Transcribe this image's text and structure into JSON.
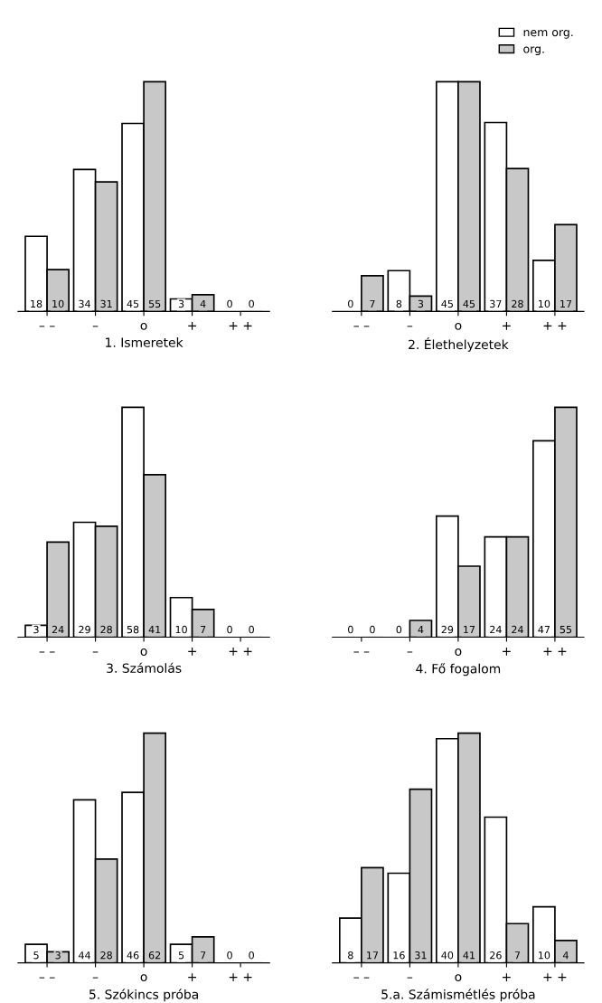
{
  "chart_data": [
    {
      "type": "bar",
      "title": "1. Ismeretek",
      "categories": [
        "– –",
        "–",
        "o",
        "+",
        "+ +"
      ],
      "data_labels": true,
      "legend": false,
      "series": [
        {
          "color": "#ffffff",
          "values": [
            18,
            34,
            45,
            3,
            0
          ]
        },
        {
          "color": "#c8c8c8",
          "values": [
            10,
            31,
            55,
            4,
            0
          ]
        }
      ]
    },
    {
      "type": "bar",
      "title": "2. Élethelyzetek",
      "categories": [
        "– –",
        "–",
        "o",
        "+",
        "+ +"
      ],
      "data_labels": true,
      "legend": "top right",
      "series": [
        {
          "name": "nem org.",
          "color": "#ffffff",
          "values": [
            0,
            8,
            45,
            37,
            10
          ]
        },
        {
          "name": "org.",
          "color": "#c8c8c8",
          "values": [
            7,
            3,
            45,
            28,
            17
          ]
        }
      ]
    },
    {
      "type": "bar",
      "title": "3. Számolás",
      "categories": [
        "– –",
        "–",
        "o",
        "+",
        "+ +"
      ],
      "data_labels": true,
      "legend": false,
      "series": [
        {
          "color": "#ffffff",
          "values": [
            3,
            29,
            58,
            10,
            0
          ]
        },
        {
          "color": "#c8c8c8",
          "values": [
            24,
            28,
            41,
            7,
            0
          ]
        }
      ]
    },
    {
      "type": "bar",
      "title": "4. Fő fogalom",
      "categories": [
        "– –",
        "–",
        "o",
        "+",
        "+ +"
      ],
      "data_labels": true,
      "legend": false,
      "series": [
        {
          "color": "#ffffff",
          "values": [
            0,
            0,
            29,
            24,
            47
          ]
        },
        {
          "color": "#c8c8c8",
          "values": [
            0,
            4,
            17,
            24,
            55
          ]
        }
      ]
    },
    {
      "type": "bar",
      "title": "5. Szókincs próba",
      "categories": [
        "– –",
        "–",
        "o",
        "+",
        "+ +"
      ],
      "data_labels": true,
      "legend": false,
      "series": [
        {
          "color": "#ffffff",
          "values": [
            5,
            44,
            46,
            5,
            0
          ]
        },
        {
          "color": "#c8c8c8",
          "values": [
            3,
            28,
            62,
            7,
            0
          ]
        }
      ]
    },
    {
      "type": "bar",
      "title": "5.a. Számismétlés próba",
      "categories": [
        "– –",
        "–",
        "o",
        "+",
        "+ +"
      ],
      "data_labels": true,
      "legend": false,
      "series": [
        {
          "color": "#ffffff",
          "values": [
            8,
            16,
            40,
            26,
            10
          ]
        },
        {
          "color": "#c8c8c8",
          "values": [
            17,
            31,
            41,
            7,
            4
          ]
        }
      ]
    }
  ]
}
